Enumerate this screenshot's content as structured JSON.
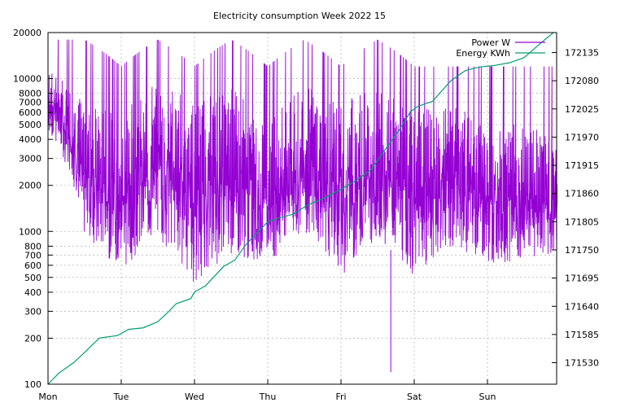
{
  "chart_data": {
    "type": "line",
    "title": "Electricity consumption Week 2022 15",
    "x_categories": [
      "Mon",
      "Tue",
      "Wed",
      "Thu",
      "Fri",
      "Sat",
      "Sun"
    ],
    "y_left": {
      "scale": "log",
      "lim": [
        100,
        20000
      ],
      "ticks": [
        100,
        200,
        300,
        400,
        500,
        600,
        700,
        800,
        1000,
        2000,
        3000,
        4000,
        5000,
        6000,
        7000,
        8000,
        10000,
        20000
      ]
    },
    "y_right": {
      "lim": [
        171488,
        172174
      ],
      "ticks": [
        171530,
        171585,
        171640,
        171695,
        171750,
        171805,
        171860,
        171915,
        171970,
        172025,
        172080,
        172135
      ]
    },
    "grid": true,
    "legend_position": "top-right",
    "series": [
      {
        "name": "Power W",
        "axis": "left",
        "color": "#9400d3",
        "bands": [
          {
            "day": 0.0,
            "low": 4500,
            "high": 12000,
            "peak": 18000
          },
          {
            "day": 0.5,
            "low": 900,
            "high": 7000,
            "peak": 18000
          },
          {
            "day": 1.0,
            "low": 550,
            "high": 6000,
            "peak": 12000
          },
          {
            "day": 1.5,
            "low": 900,
            "high": 10000,
            "peak": 18000
          },
          {
            "day": 2.0,
            "low": 450,
            "high": 8000,
            "peak": 12000
          },
          {
            "day": 2.5,
            "low": 700,
            "high": 9000,
            "peak": 18000
          },
          {
            "day": 3.0,
            "low": 600,
            "high": 5000,
            "peak": 12000
          },
          {
            "day": 3.5,
            "low": 1000,
            "high": 9000,
            "peak": 18000
          },
          {
            "day": 4.0,
            "low": 500,
            "high": 8000,
            "peak": 12000
          },
          {
            "day": 4.5,
            "low": 900,
            "high": 9000,
            "peak": 18000
          },
          {
            "day": 5.0,
            "low": 500,
            "high": 6000,
            "peak": 12000
          },
          {
            "day": 5.5,
            "low": 800,
            "high": 7000,
            "peak": 12000
          },
          {
            "day": 6.0,
            "low": 600,
            "high": 5000,
            "peak": 12000
          },
          {
            "day": 6.5,
            "low": 650,
            "high": 5000,
            "peak": 12000
          },
          {
            "day": 6.95,
            "low": 700,
            "high": 4500,
            "peak": 12000
          }
        ],
        "min_spike": {
          "day": 4.68,
          "value": 120
        }
      },
      {
        "name": "Energy KWh",
        "axis": "right",
        "color": "#009e73",
        "x": [
          0,
          0.15,
          0.35,
          0.5,
          0.7,
          0.95,
          1.1,
          1.3,
          1.5,
          1.65,
          1.75,
          1.95,
          2.0,
          2.15,
          2.4,
          2.55,
          2.7,
          2.9,
          3.0,
          3.15,
          3.35,
          3.55,
          3.75,
          4.0,
          4.2,
          4.4,
          4.6,
          4.8,
          4.95,
          5.05,
          5.25,
          5.5,
          5.7,
          5.9,
          6.1,
          6.3,
          6.5,
          6.7,
          6.9
        ],
        "y": [
          171488,
          171510,
          171530,
          171550,
          171578,
          171583,
          171595,
          171598,
          171610,
          171630,
          171645,
          171655,
          171668,
          171680,
          171718,
          171730,
          171760,
          171790,
          171805,
          171812,
          171820,
          171838,
          171850,
          171868,
          171885,
          171905,
          171945,
          171985,
          172020,
          172030,
          172040,
          172080,
          172100,
          172107,
          172110,
          172115,
          172125,
          172150,
          172174
        ]
      }
    ]
  }
}
